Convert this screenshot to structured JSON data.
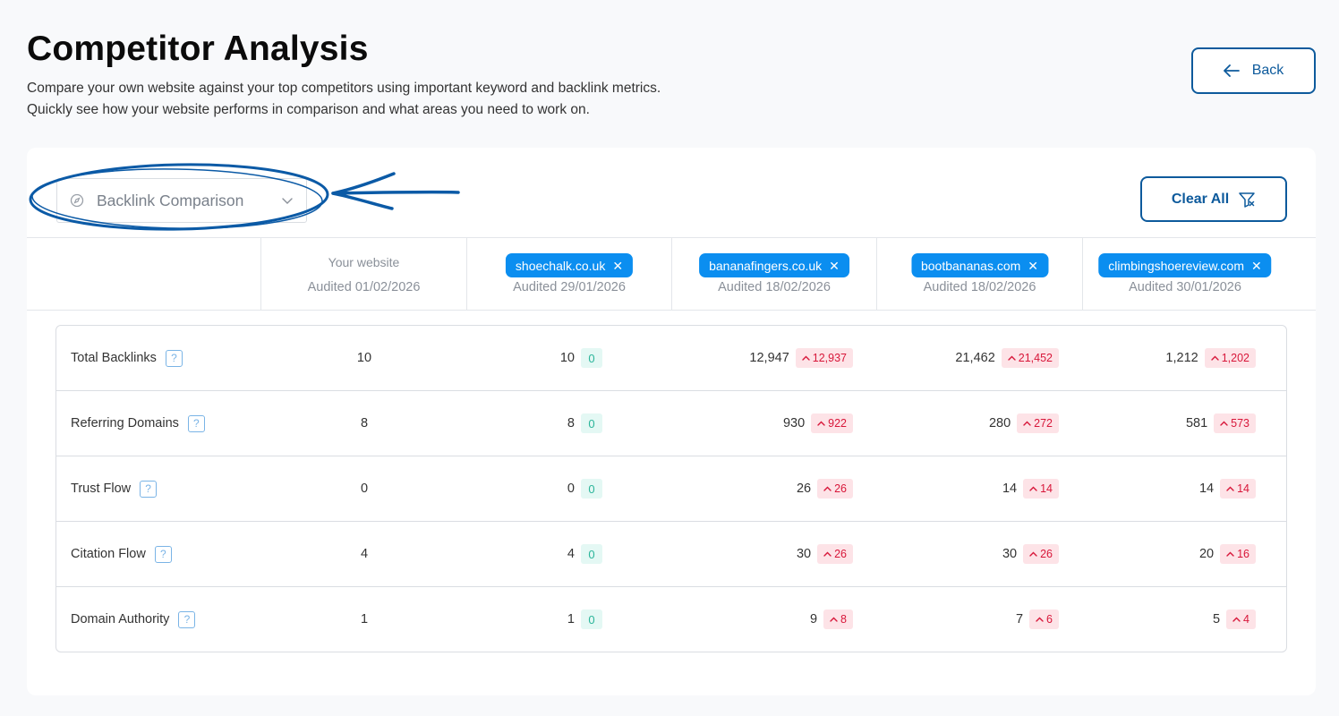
{
  "page": {
    "title": "Competitor Analysis",
    "subtitle_line1": "Compare your own website against your top competitors using important keyword and backlink metrics.",
    "subtitle_line2": "Quickly see how your website performs in comparison and what areas you need to work on.",
    "back_label": "Back"
  },
  "toolbar": {
    "dropdown_value": "Backlink Comparison",
    "clear_label": "Clear All"
  },
  "columns": {
    "own": {
      "label": "Your website",
      "audited": "Audited 01/02/2026"
    },
    "competitors": [
      {
        "domain": "shoechalk.co.uk",
        "audited": "Audited 29/01/2026"
      },
      {
        "domain": "bananafingers.co.uk",
        "audited": "Audited 18/02/2026"
      },
      {
        "domain": "bootbananas.com",
        "audited": "Audited 18/02/2026"
      },
      {
        "domain": "climbingshoereview.com",
        "audited": "Audited 30/01/2026"
      }
    ]
  },
  "rows": [
    {
      "metric": "Total Backlinks",
      "own": "10",
      "c": [
        {
          "v": "10",
          "d": "0"
        },
        {
          "v": "12,947",
          "d": "12,937"
        },
        {
          "v": "21,462",
          "d": "21,452"
        },
        {
          "v": "1,212",
          "d": "1,202"
        }
      ]
    },
    {
      "metric": "Referring Domains",
      "own": "8",
      "c": [
        {
          "v": "8",
          "d": "0"
        },
        {
          "v": "930",
          "d": "922"
        },
        {
          "v": "280",
          "d": "272"
        },
        {
          "v": "581",
          "d": "573"
        }
      ]
    },
    {
      "metric": "Trust Flow",
      "own": "0",
      "c": [
        {
          "v": "0",
          "d": "0"
        },
        {
          "v": "26",
          "d": "26"
        },
        {
          "v": "14",
          "d": "14"
        },
        {
          "v": "14",
          "d": "14"
        }
      ]
    },
    {
      "metric": "Citation Flow",
      "own": "4",
      "c": [
        {
          "v": "4",
          "d": "0"
        },
        {
          "v": "30",
          "d": "26"
        },
        {
          "v": "30",
          "d": "26"
        },
        {
          "v": "20",
          "d": "16"
        }
      ]
    },
    {
      "metric": "Domain Authority",
      "own": "1",
      "c": [
        {
          "v": "1",
          "d": "0"
        },
        {
          "v": "9",
          "d": "8"
        },
        {
          "v": "7",
          "d": "6"
        },
        {
          "v": "5",
          "d": "4"
        }
      ]
    }
  ],
  "icons": {
    "back": "arrow-left-icon",
    "dropdown_lead": "compass-icon",
    "dropdown_chevron": "chevron-down-icon",
    "clear": "filter-clear-icon",
    "help": "question-icon",
    "increase": "chevron-up-icon",
    "remove": "close-icon"
  },
  "colors": {
    "accent": "#0d5a9c",
    "chip": "#0b8ef0",
    "positive_bg": "#e4f8f4",
    "positive_fg": "#2bb59a",
    "negative_bg": "#fde3e7",
    "negative_fg": "#d8173a",
    "annotation": "#0b5aa6"
  }
}
